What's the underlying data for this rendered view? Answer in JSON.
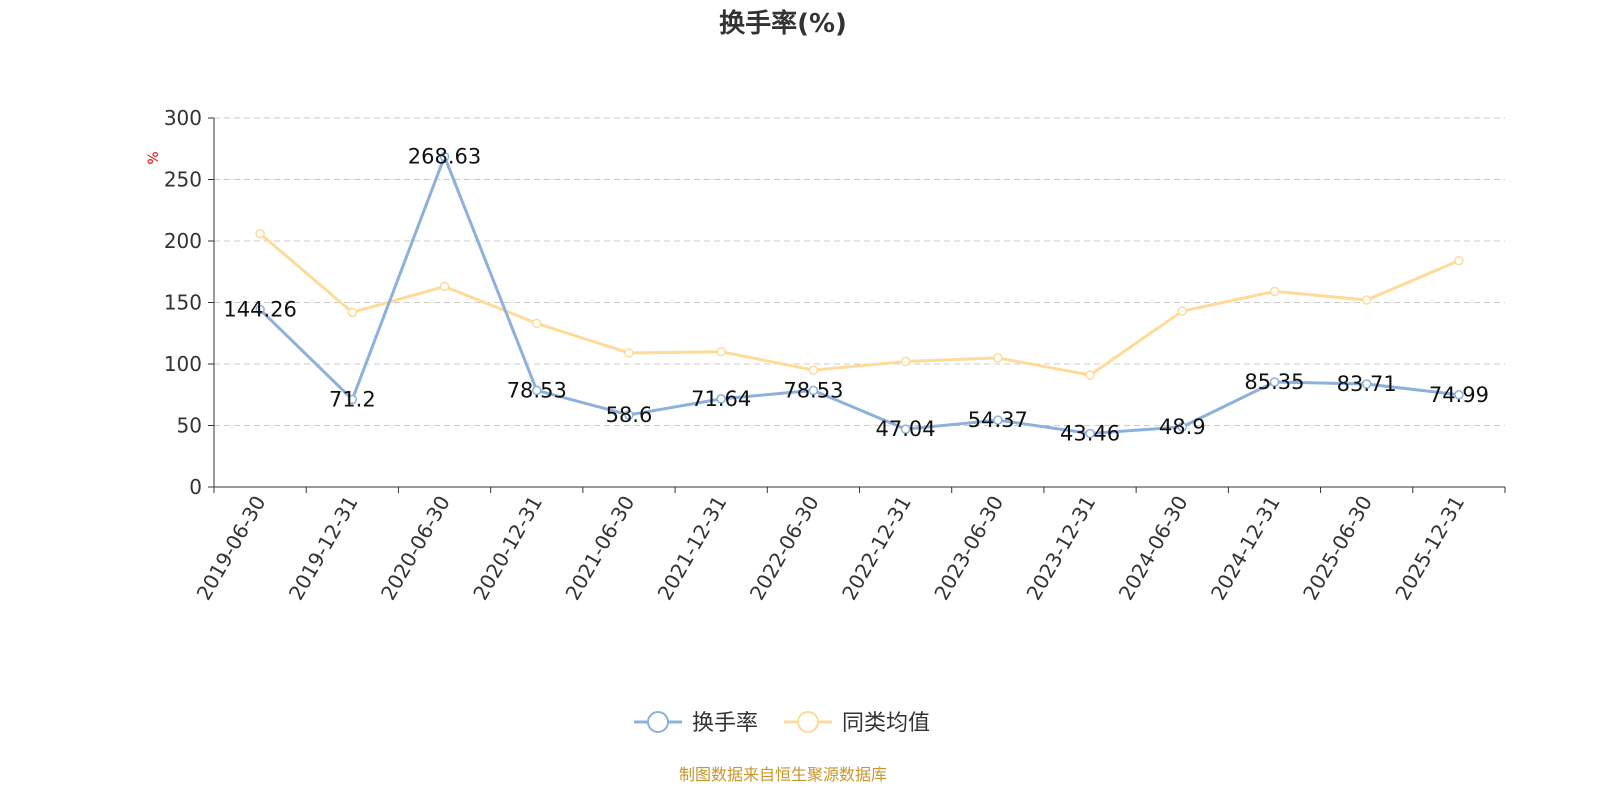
{
  "chart_data": {
    "type": "line",
    "title": "换手率(%)",
    "ylabel": "%",
    "xlabel": "",
    "ylim": [
      0,
      300
    ],
    "yticks": [
      0,
      50,
      100,
      150,
      200,
      250,
      300
    ],
    "grid": true,
    "legend_position": "bottom",
    "categories": [
      "2019-06-30",
      "2019-12-31",
      "2020-06-30",
      "2020-12-31",
      "2021-06-30",
      "2021-12-31",
      "2022-06-30",
      "2022-12-31",
      "2023-06-30",
      "2023-12-31",
      "2024-06-30",
      "2024-12-31",
      "2025-06-30",
      "2025-12-31"
    ],
    "series": [
      {
        "name": "换手率",
        "color": "#8eb0dc",
        "show_labels": true,
        "values": [
          144.26,
          71.2,
          268.63,
          78.53,
          58.6,
          71.64,
          78.53,
          47.04,
          54.37,
          43.46,
          48.9,
          85.35,
          83.71,
          74.99
        ]
      },
      {
        "name": "同类均值",
        "color": "#fddb98",
        "show_labels": false,
        "values": [
          206,
          142,
          163,
          133,
          109,
          110,
          95,
          102,
          105,
          91,
          143,
          159,
          152,
          184
        ]
      }
    ]
  },
  "footer": {
    "source": "制图数据来自恒生聚源数据库"
  }
}
